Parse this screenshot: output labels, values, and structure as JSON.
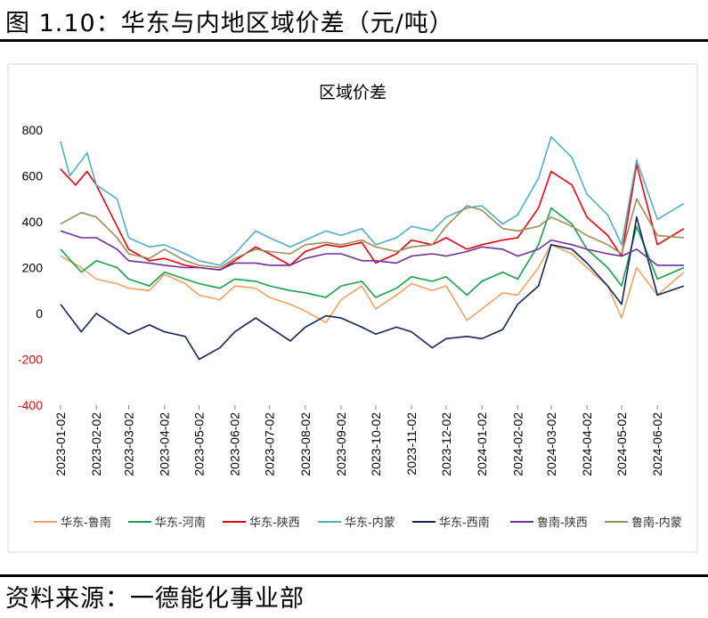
{
  "figure_title": "图 1.10：华东与内地区域价差（元/吨）",
  "source_note": "资料来源：一德能化事业部",
  "chart_data": {
    "type": "line",
    "title": "区域价差",
    "xlabel": "",
    "ylabel": "",
    "ylim": [
      -400,
      800
    ],
    "y_ticks": [
      800,
      600,
      400,
      200,
      0,
      -200,
      -400
    ],
    "negative_tick_color": "#e8000b",
    "x_tick_labels": [
      "2023-01-02",
      "2023-02-02",
      "2023-03-02",
      "2023-04-02",
      "2023-05-02",
      "2023-06-02",
      "2023-07-02",
      "2023-08-02",
      "2023-09-02",
      "2023-10-02",
      "2023-11-02",
      "2023-12-02",
      "2024-01-02",
      "2024-02-02",
      "2024-03-02",
      "2024-04-02",
      "2024-05-02",
      "2024-06-02"
    ],
    "x_start": "2023-01-02",
    "x_end": "2024-06-25",
    "grid": false,
    "legend_position": "bottom",
    "series": [
      {
        "name": "华东-鲁南",
        "color": "#f4a261",
        "points": [
          [
            "2023-01-02",
            250
          ],
          [
            "2023-01-20",
            200
          ],
          [
            "2023-02-02",
            150
          ],
          [
            "2023-02-20",
            130
          ],
          [
            "2023-03-02",
            110
          ],
          [
            "2023-03-20",
            100
          ],
          [
            "2023-04-02",
            170
          ],
          [
            "2023-04-20",
            130
          ],
          [
            "2023-05-02",
            80
          ],
          [
            "2023-05-20",
            60
          ],
          [
            "2023-06-02",
            120
          ],
          [
            "2023-06-20",
            110
          ],
          [
            "2023-07-02",
            70
          ],
          [
            "2023-07-20",
            40
          ],
          [
            "2023-08-02",
            10
          ],
          [
            "2023-08-20",
            -40
          ],
          [
            "2023-09-02",
            60
          ],
          [
            "2023-09-20",
            120
          ],
          [
            "2023-10-02",
            20
          ],
          [
            "2023-10-20",
            80
          ],
          [
            "2023-11-02",
            130
          ],
          [
            "2023-11-20",
            100
          ],
          [
            "2023-12-02",
            120
          ],
          [
            "2023-12-20",
            -30
          ],
          [
            "2024-01-02",
            20
          ],
          [
            "2024-01-20",
            90
          ],
          [
            "2024-02-02",
            80
          ],
          [
            "2024-02-20",
            200
          ],
          [
            "2024-03-02",
            300
          ],
          [
            "2024-03-20",
            260
          ],
          [
            "2024-04-02",
            200
          ],
          [
            "2024-04-20",
            120
          ],
          [
            "2024-05-02",
            -20
          ],
          [
            "2024-05-15",
            200
          ],
          [
            "2024-06-02",
            80
          ],
          [
            "2024-06-25",
            180
          ]
        ]
      },
      {
        "name": "华东-河南",
        "color": "#16a34a",
        "points": [
          [
            "2023-01-02",
            280
          ],
          [
            "2023-01-20",
            180
          ],
          [
            "2023-02-02",
            230
          ],
          [
            "2023-02-20",
            200
          ],
          [
            "2023-03-02",
            150
          ],
          [
            "2023-03-20",
            120
          ],
          [
            "2023-04-02",
            180
          ],
          [
            "2023-04-20",
            150
          ],
          [
            "2023-05-02",
            130
          ],
          [
            "2023-05-20",
            110
          ],
          [
            "2023-06-02",
            150
          ],
          [
            "2023-06-20",
            140
          ],
          [
            "2023-07-02",
            120
          ],
          [
            "2023-07-20",
            100
          ],
          [
            "2023-08-02",
            90
          ],
          [
            "2023-08-20",
            70
          ],
          [
            "2023-09-02",
            120
          ],
          [
            "2023-09-20",
            140
          ],
          [
            "2023-10-02",
            70
          ],
          [
            "2023-10-20",
            110
          ],
          [
            "2023-11-02",
            160
          ],
          [
            "2023-11-20",
            140
          ],
          [
            "2023-12-02",
            160
          ],
          [
            "2023-12-20",
            80
          ],
          [
            "2024-01-02",
            140
          ],
          [
            "2024-01-20",
            180
          ],
          [
            "2024-02-02",
            150
          ],
          [
            "2024-02-20",
            300
          ],
          [
            "2024-03-02",
            460
          ],
          [
            "2024-03-20",
            390
          ],
          [
            "2024-04-02",
            280
          ],
          [
            "2024-04-20",
            200
          ],
          [
            "2024-05-02",
            120
          ],
          [
            "2024-05-15",
            380
          ],
          [
            "2024-06-02",
            150
          ],
          [
            "2024-06-25",
            200
          ]
        ]
      },
      {
        "name": "华东-陕西",
        "color": "#e8000b",
        "points": [
          [
            "2023-01-02",
            630
          ],
          [
            "2023-01-15",
            560
          ],
          [
            "2023-01-25",
            620
          ],
          [
            "2023-02-02",
            560
          ],
          [
            "2023-02-20",
            380
          ],
          [
            "2023-03-02",
            280
          ],
          [
            "2023-03-20",
            230
          ],
          [
            "2023-04-02",
            240
          ],
          [
            "2023-04-20",
            210
          ],
          [
            "2023-05-02",
            200
          ],
          [
            "2023-05-20",
            190
          ],
          [
            "2023-06-02",
            230
          ],
          [
            "2023-06-20",
            290
          ],
          [
            "2023-07-02",
            260
          ],
          [
            "2023-07-20",
            210
          ],
          [
            "2023-08-02",
            270
          ],
          [
            "2023-08-20",
            300
          ],
          [
            "2023-09-02",
            290
          ],
          [
            "2023-09-20",
            310
          ],
          [
            "2023-10-02",
            220
          ],
          [
            "2023-10-20",
            260
          ],
          [
            "2023-11-02",
            320
          ],
          [
            "2023-11-20",
            300
          ],
          [
            "2023-12-02",
            330
          ],
          [
            "2023-12-20",
            280
          ],
          [
            "2024-01-02",
            300
          ],
          [
            "2024-01-20",
            320
          ],
          [
            "2024-02-02",
            330
          ],
          [
            "2024-02-20",
            460
          ],
          [
            "2024-03-02",
            620
          ],
          [
            "2024-03-20",
            560
          ],
          [
            "2024-04-02",
            420
          ],
          [
            "2024-04-20",
            340
          ],
          [
            "2024-05-02",
            250
          ],
          [
            "2024-05-15",
            650
          ],
          [
            "2024-06-02",
            300
          ],
          [
            "2024-06-25",
            370
          ]
        ]
      },
      {
        "name": "华东-内蒙",
        "color": "#4fb0c6",
        "points": [
          [
            "2023-01-02",
            750
          ],
          [
            "2023-01-10",
            600
          ],
          [
            "2023-01-25",
            700
          ],
          [
            "2023-02-02",
            560
          ],
          [
            "2023-02-20",
            500
          ],
          [
            "2023-03-02",
            330
          ],
          [
            "2023-03-20",
            290
          ],
          [
            "2023-04-02",
            300
          ],
          [
            "2023-04-20",
            260
          ],
          [
            "2023-05-02",
            230
          ],
          [
            "2023-05-20",
            210
          ],
          [
            "2023-06-02",
            260
          ],
          [
            "2023-06-20",
            360
          ],
          [
            "2023-07-02",
            330
          ],
          [
            "2023-07-20",
            290
          ],
          [
            "2023-08-02",
            320
          ],
          [
            "2023-08-20",
            360
          ],
          [
            "2023-09-02",
            340
          ],
          [
            "2023-09-20",
            370
          ],
          [
            "2023-10-02",
            300
          ],
          [
            "2023-10-20",
            330
          ],
          [
            "2023-11-02",
            380
          ],
          [
            "2023-11-20",
            360
          ],
          [
            "2023-12-02",
            420
          ],
          [
            "2023-12-20",
            460
          ],
          [
            "2024-01-02",
            470
          ],
          [
            "2024-01-20",
            390
          ],
          [
            "2024-02-02",
            430
          ],
          [
            "2024-02-20",
            590
          ],
          [
            "2024-03-02",
            770
          ],
          [
            "2024-03-20",
            680
          ],
          [
            "2024-04-02",
            520
          ],
          [
            "2024-04-20",
            430
          ],
          [
            "2024-05-02",
            300
          ],
          [
            "2024-05-15",
            670
          ],
          [
            "2024-06-02",
            410
          ],
          [
            "2024-06-25",
            480
          ]
        ]
      },
      {
        "name": "华东-西南",
        "color": "#13235b",
        "points": [
          [
            "2023-01-02",
            40
          ],
          [
            "2023-01-20",
            -80
          ],
          [
            "2023-02-02",
            0
          ],
          [
            "2023-02-20",
            -60
          ],
          [
            "2023-03-02",
            -90
          ],
          [
            "2023-03-20",
            -50
          ],
          [
            "2023-04-02",
            -80
          ],
          [
            "2023-04-20",
            -100
          ],
          [
            "2023-05-02",
            -200
          ],
          [
            "2023-05-20",
            -150
          ],
          [
            "2023-06-02",
            -80
          ],
          [
            "2023-06-20",
            -20
          ],
          [
            "2023-07-02",
            -60
          ],
          [
            "2023-07-20",
            -120
          ],
          [
            "2023-08-02",
            -60
          ],
          [
            "2023-08-20",
            -10
          ],
          [
            "2023-09-02",
            -20
          ],
          [
            "2023-09-20",
            -60
          ],
          [
            "2023-10-02",
            -90
          ],
          [
            "2023-10-20",
            -60
          ],
          [
            "2023-11-02",
            -80
          ],
          [
            "2023-11-20",
            -150
          ],
          [
            "2023-12-02",
            -110
          ],
          [
            "2023-12-20",
            -100
          ],
          [
            "2024-01-02",
            -110
          ],
          [
            "2024-01-20",
            -70
          ],
          [
            "2024-02-02",
            40
          ],
          [
            "2024-02-20",
            120
          ],
          [
            "2024-03-02",
            300
          ],
          [
            "2024-03-20",
            280
          ],
          [
            "2024-04-02",
            220
          ],
          [
            "2024-04-20",
            120
          ],
          [
            "2024-05-02",
            40
          ],
          [
            "2024-05-15",
            420
          ],
          [
            "2024-06-02",
            80
          ],
          [
            "2024-06-25",
            120
          ]
        ]
      },
      {
        "name": "鲁南-陕西",
        "color": "#7030a0",
        "points": [
          [
            "2023-01-02",
            360
          ],
          [
            "2023-01-20",
            330
          ],
          [
            "2023-02-02",
            330
          ],
          [
            "2023-02-20",
            280
          ],
          [
            "2023-03-02",
            230
          ],
          [
            "2023-03-20",
            220
          ],
          [
            "2023-04-02",
            210
          ],
          [
            "2023-04-20",
            200
          ],
          [
            "2023-05-02",
            200
          ],
          [
            "2023-05-20",
            190
          ],
          [
            "2023-06-02",
            220
          ],
          [
            "2023-06-20",
            220
          ],
          [
            "2023-07-02",
            210
          ],
          [
            "2023-07-20",
            210
          ],
          [
            "2023-08-02",
            240
          ],
          [
            "2023-08-20",
            260
          ],
          [
            "2023-09-02",
            260
          ],
          [
            "2023-09-20",
            230
          ],
          [
            "2023-10-02",
            230
          ],
          [
            "2023-10-20",
            220
          ],
          [
            "2023-11-02",
            250
          ],
          [
            "2023-11-20",
            260
          ],
          [
            "2023-12-02",
            250
          ],
          [
            "2023-12-20",
            270
          ],
          [
            "2024-01-02",
            290
          ],
          [
            "2024-01-20",
            280
          ],
          [
            "2024-02-02",
            250
          ],
          [
            "2024-02-20",
            280
          ],
          [
            "2024-03-02",
            320
          ],
          [
            "2024-03-20",
            300
          ],
          [
            "2024-04-02",
            280
          ],
          [
            "2024-04-20",
            260
          ],
          [
            "2024-05-02",
            250
          ],
          [
            "2024-05-15",
            280
          ],
          [
            "2024-06-02",
            210
          ],
          [
            "2024-06-25",
            210
          ]
        ]
      },
      {
        "name": "鲁南-内蒙",
        "color": "#9c8c5a",
        "points": [
          [
            "2023-01-02",
            390
          ],
          [
            "2023-01-20",
            440
          ],
          [
            "2023-02-02",
            420
          ],
          [
            "2023-02-20",
            330
          ],
          [
            "2023-03-02",
            260
          ],
          [
            "2023-03-20",
            240
          ],
          [
            "2023-04-02",
            280
          ],
          [
            "2023-04-20",
            230
          ],
          [
            "2023-05-02",
            210
          ],
          [
            "2023-05-20",
            200
          ],
          [
            "2023-06-02",
            240
          ],
          [
            "2023-06-20",
            280
          ],
          [
            "2023-07-02",
            270
          ],
          [
            "2023-07-20",
            260
          ],
          [
            "2023-08-02",
            300
          ],
          [
            "2023-08-20",
            310
          ],
          [
            "2023-09-02",
            300
          ],
          [
            "2023-09-20",
            320
          ],
          [
            "2023-10-02",
            290
          ],
          [
            "2023-10-20",
            270
          ],
          [
            "2023-11-02",
            290
          ],
          [
            "2023-11-20",
            300
          ],
          [
            "2023-12-02",
            380
          ],
          [
            "2023-12-20",
            470
          ],
          [
            "2024-01-02",
            450
          ],
          [
            "2024-01-20",
            370
          ],
          [
            "2024-02-02",
            360
          ],
          [
            "2024-02-20",
            380
          ],
          [
            "2024-03-02",
            420
          ],
          [
            "2024-03-20",
            380
          ],
          [
            "2024-04-02",
            340
          ],
          [
            "2024-04-20",
            300
          ],
          [
            "2024-05-02",
            260
          ],
          [
            "2024-05-15",
            500
          ],
          [
            "2024-06-02",
            340
          ],
          [
            "2024-06-25",
            330
          ]
        ]
      }
    ]
  }
}
